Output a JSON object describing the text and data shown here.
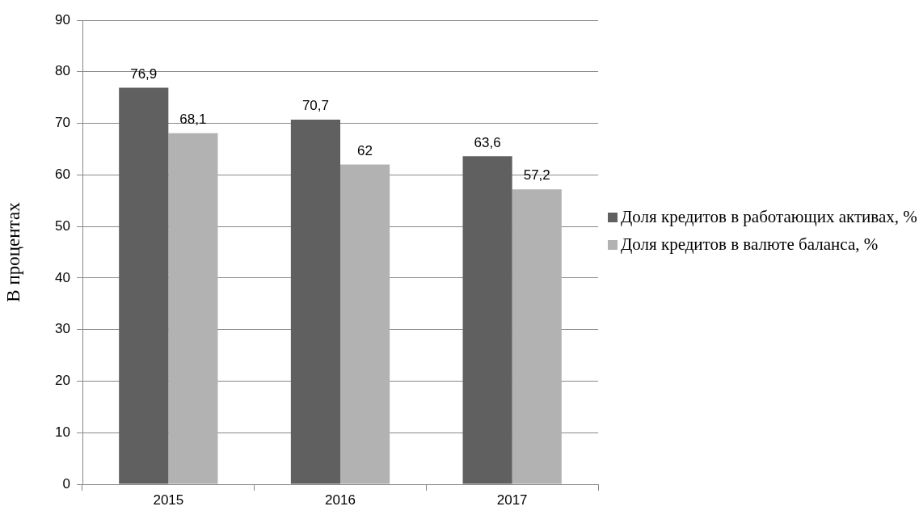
{
  "chart_data": {
    "type": "bar",
    "ylabel": "В процентах",
    "categories": [
      "2015",
      "2016",
      "2017"
    ],
    "series": [
      {
        "name": "Доля кредитов в работающих активах, %",
        "color": "#606060",
        "values": [
          76.9,
          70.7,
          63.6
        ],
        "value_labels": [
          "76,9",
          "70,7",
          "63,6"
        ]
      },
      {
        "name": "Доля кредитов в валюте баланса, %",
        "color": "#b2b2b2",
        "values": [
          68.1,
          62,
          57.2
        ],
        "value_labels": [
          "68,1",
          "62",
          "57,2"
        ]
      }
    ],
    "ylim": [
      0,
      90
    ],
    "yticks": [
      0,
      10,
      20,
      30,
      40,
      50,
      60,
      70,
      80,
      90
    ],
    "grid": "y",
    "legend": "right"
  }
}
